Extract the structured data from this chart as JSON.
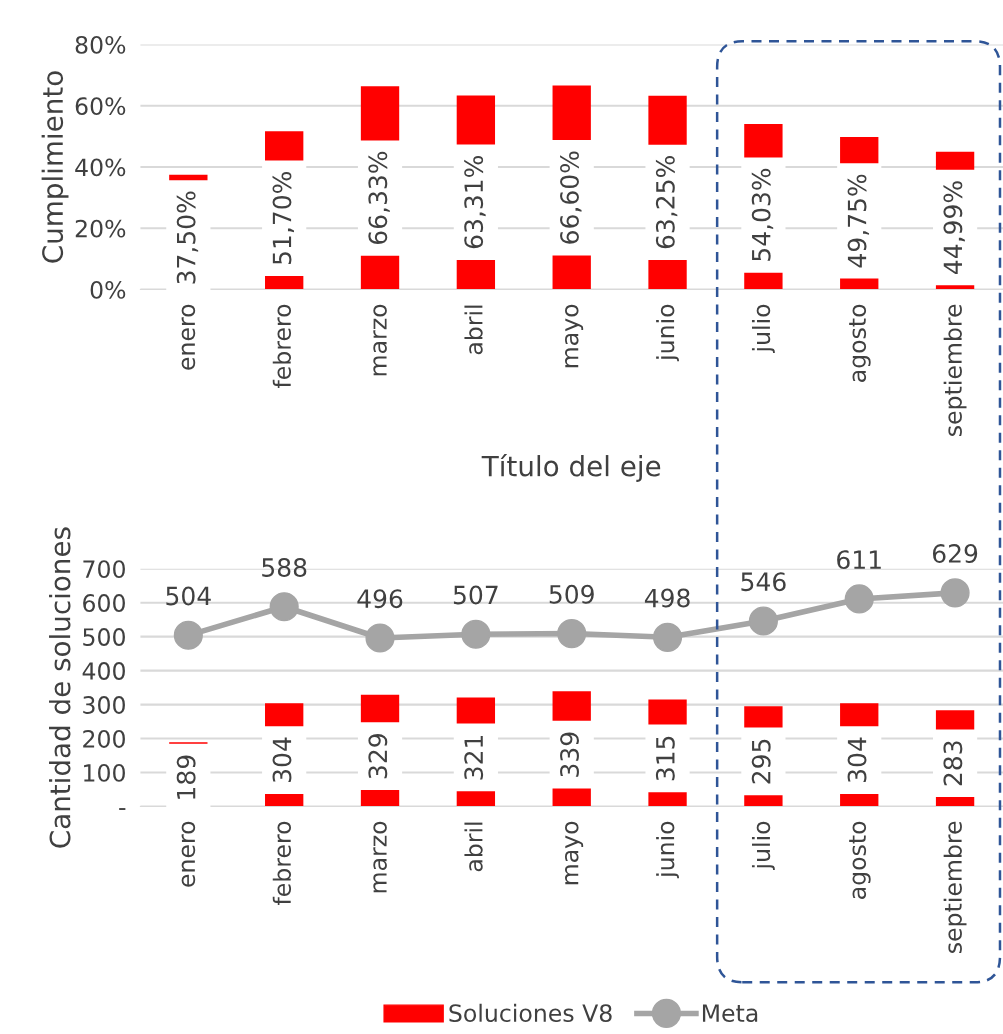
{
  "chart_data": [
    {
      "type": "bar",
      "ylabel": "Cumplimiento",
      "xlabel": "Título del eje",
      "categories": [
        "enero",
        "febrero",
        "marzo",
        "abril",
        "mayo",
        "junio",
        "julio",
        "agosto",
        "septiembre"
      ],
      "series": [
        {
          "color": "#ff0000",
          "values": [
            37.5,
            51.7,
            66.33,
            63.31,
            66.6,
            63.25,
            54.03,
            49.75,
            44.99
          ],
          "value_labels": [
            "37,50%",
            "51,70%",
            "66,33%",
            "63,31%",
            "66,60%",
            "63,25%",
            "54,03%",
            "49,75%",
            "44,99%"
          ]
        }
      ],
      "ylim": [
        0,
        80
      ],
      "yticks": [
        {
          "value": 0,
          "label": "0%"
        },
        {
          "value": 20,
          "label": "20%"
        },
        {
          "value": 40,
          "label": "40%"
        },
        {
          "value": 60,
          "label": "60%"
        },
        {
          "value": 80,
          "label": "80%"
        }
      ],
      "grid": "y",
      "legend": false
    },
    {
      "type": "bar",
      "ylabel": "Cantidad de soluciones",
      "categories": [
        "enero",
        "febrero",
        "marzo",
        "abril",
        "mayo",
        "junio",
        "julio",
        "agosto",
        "septiembre"
      ],
      "series": [
        {
          "name": "Soluciones V8",
          "type": "bar",
          "color": "#ff0000",
          "values": [
            189,
            304,
            329,
            321,
            339,
            315,
            295,
            304,
            283
          ],
          "data_labels": true
        },
        {
          "name": "Meta",
          "type": "line",
          "color": "#a5a5a5",
          "marker": "circle",
          "values": [
            504,
            588,
            496,
            507,
            509,
            498,
            546,
            611,
            629
          ],
          "data_labels": true
        }
      ],
      "ylim": [
        0,
        700
      ],
      "yticks": [
        {
          "value": 0,
          "label": "-"
        },
        100,
        200,
        300,
        400,
        500,
        600,
        700
      ],
      "grid": "y",
      "legend": "bottom"
    }
  ]
}
